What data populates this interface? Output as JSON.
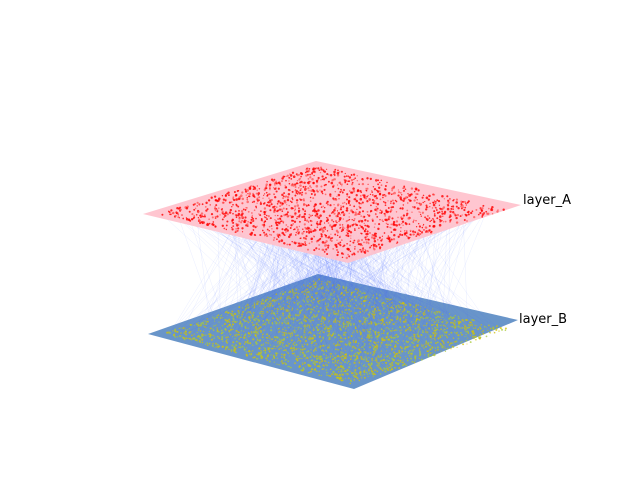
{
  "layers": [
    {
      "name": "layer_A",
      "plane_color": "#ffc0cb",
      "node_color": "#ff0000",
      "node_highlight": "#ff5a5a"
    },
    {
      "name": "layer_B",
      "plane_color": "#4f83c0",
      "node_color": "#d4c400",
      "node_highlight": "#a9c93a"
    }
  ],
  "interlayer_edge_color": "#4a68ff"
}
